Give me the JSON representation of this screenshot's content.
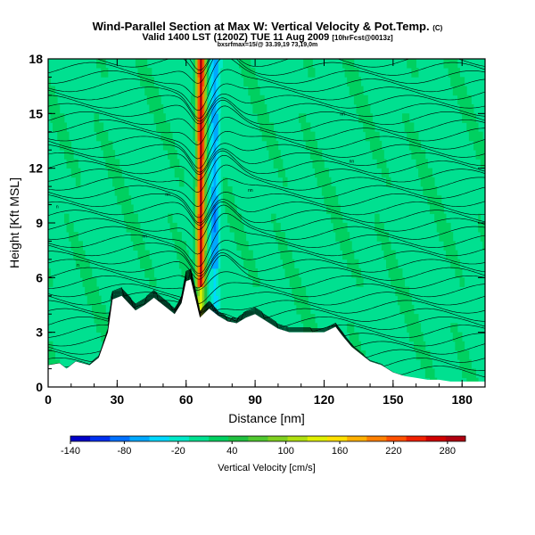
{
  "header": {
    "title": "Wind-Parallel Section at Max W: Vertical Velocity & Pot.Temp.",
    "copyright": "(C)",
    "subtitle": "Valid 1400 LST (1200Z) TUE 11 Aug 2009",
    "subtitle_small": "(1200Z)",
    "subtitle_tail": "[10hrFcst@0013z]",
    "line3": "bxsrfmax=15/@ 33.39,19 73,19,0m"
  },
  "chart_data": {
    "type": "heatmap",
    "xlabel": "Distance [nm]",
    "ylabel": "Height [Kft MSL]",
    "xlim": [
      0,
      190
    ],
    "ylim": [
      0,
      18
    ],
    "x_ticks": [
      0,
      30,
      60,
      90,
      120,
      150,
      180
    ],
    "y_ticks": [
      0,
      3,
      6,
      9,
      12,
      15,
      18
    ],
    "terrain": {
      "x": [
        0,
        5,
        8,
        12,
        18,
        22,
        26,
        28,
        32,
        35,
        38,
        42,
        46,
        50,
        55,
        58,
        60,
        62,
        66,
        70,
        74,
        78,
        82,
        86,
        90,
        95,
        100,
        105,
        110,
        115,
        120,
        125,
        128,
        132,
        136,
        140,
        145,
        150,
        155,
        160,
        165,
        170,
        175,
        180,
        185,
        190
      ],
      "y": [
        1.2,
        1.3,
        1.0,
        1.4,
        1.2,
        1.6,
        3.0,
        4.8,
        5.0,
        4.6,
        4.2,
        4.5,
        4.9,
        4.5,
        4.0,
        4.6,
        5.8,
        5.9,
        3.8,
        4.3,
        3.9,
        3.6,
        3.5,
        3.8,
        4.0,
        3.6,
        3.2,
        3.0,
        3.0,
        3.0,
        3.0,
        3.3,
        2.8,
        2.2,
        1.8,
        1.4,
        1.2,
        0.8,
        0.6,
        0.5,
        0.4,
        0.4,
        0.3,
        0.3,
        0.3,
        0.3
      ]
    },
    "updraft": {
      "center_x": 66,
      "peak": 280,
      "downdraft_x": 72,
      "downdraft_min": -80
    },
    "isentropes": [
      {
        "label": "n",
        "x": 13,
        "y": 6.6
      },
      {
        "label": "nn",
        "x": 42,
        "y": 8.2
      },
      {
        "label": "nn",
        "x": 52,
        "y": 10.5
      },
      {
        "label": "n",
        "x": 4,
        "y": 9.8
      },
      {
        "label": "nn",
        "x": 88,
        "y": 10.7
      },
      {
        "label": "nn",
        "x": 128,
        "y": 14.9
      },
      {
        "label": "nn",
        "x": 132,
        "y": 12.3
      }
    ],
    "colorbar": {
      "label": "Vertical Velocity [cm/s]",
      "ticks": [
        -140,
        -80,
        -20,
        40,
        100,
        160,
        220,
        280
      ],
      "min": -140,
      "max": 300,
      "colors": [
        "#0000c8",
        "#0030f0",
        "#0070ff",
        "#00a8ff",
        "#00d8ff",
        "#00e8c8",
        "#00e090",
        "#00d060",
        "#20c040",
        "#50c830",
        "#80d020",
        "#b0e010",
        "#e0f000",
        "#ffe000",
        "#ffb000",
        "#ff8000",
        "#ff5000",
        "#f02000",
        "#d00000",
        "#b00010"
      ]
    }
  }
}
